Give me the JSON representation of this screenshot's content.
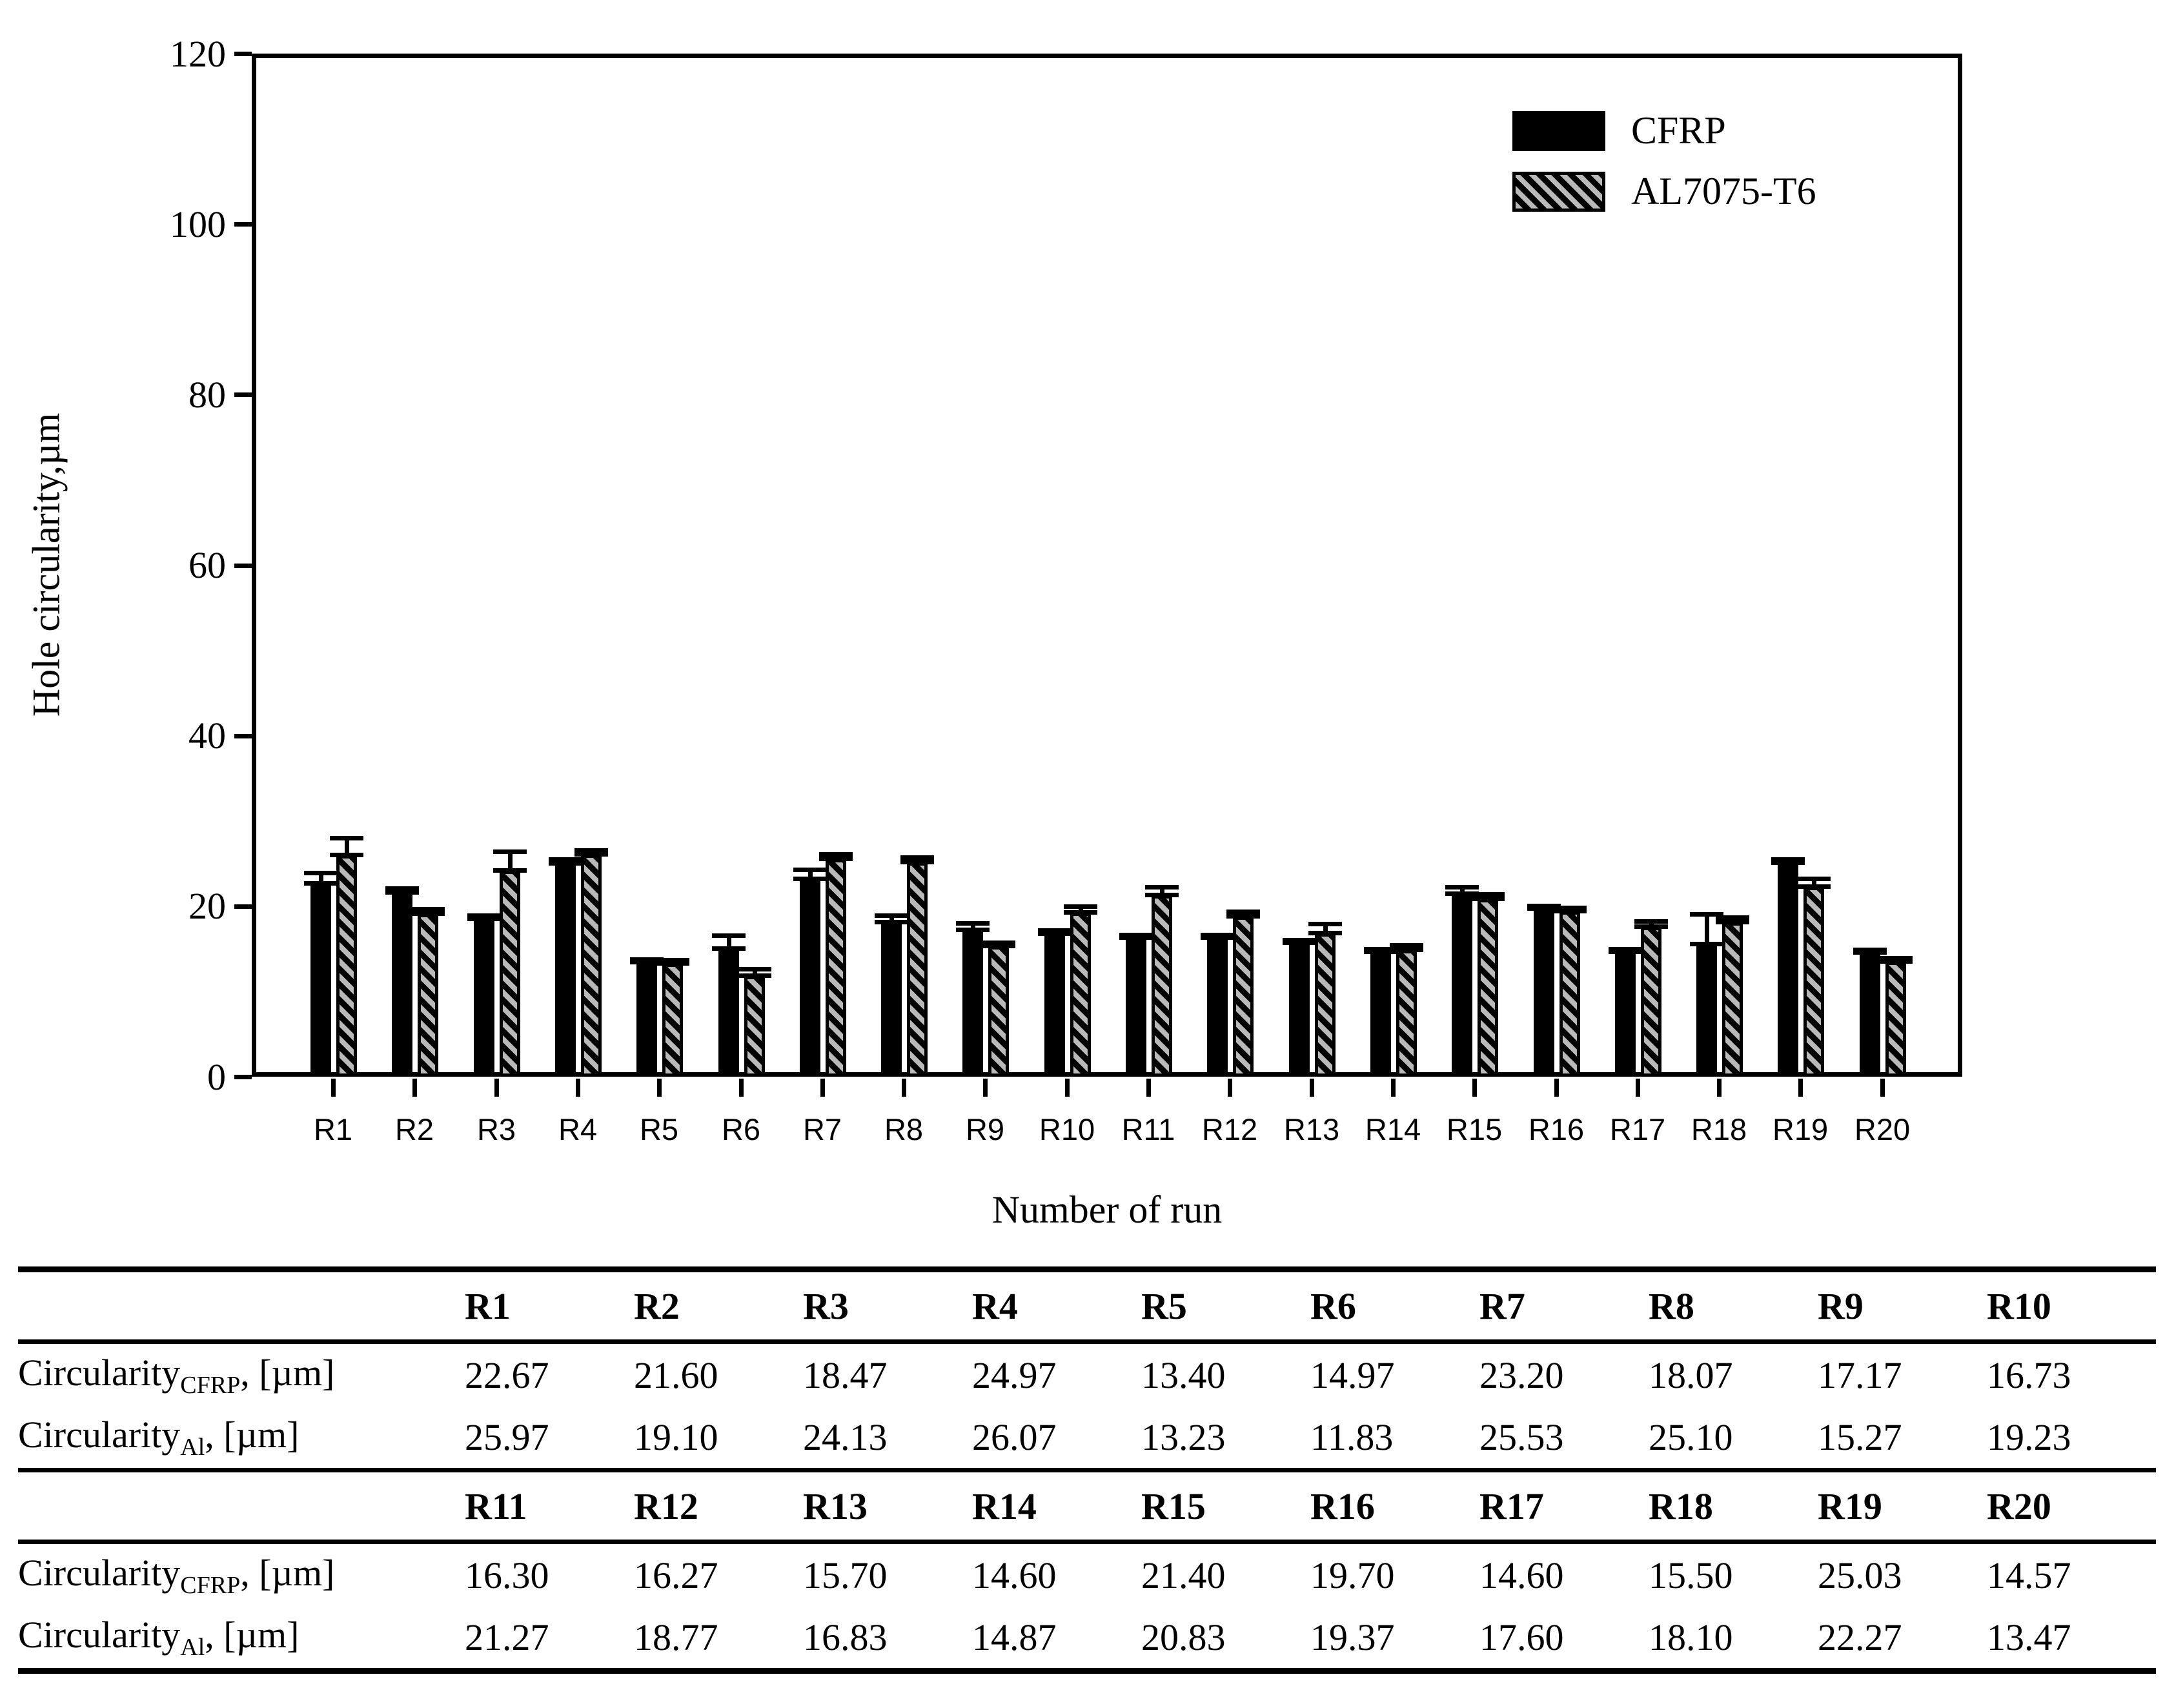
{
  "chart_data": {
    "type": "bar",
    "title": "",
    "xlabel": "Number of run",
    "ylabel": "Hole circularity,µm",
    "ylim": [
      0,
      120
    ],
    "yticks": [
      0,
      20,
      40,
      60,
      80,
      100,
      120
    ],
    "grid": false,
    "legend_position": "top-right-inside",
    "categories": [
      "R1",
      "R2",
      "R3",
      "R4",
      "R5",
      "R6",
      "R7",
      "R8",
      "R9",
      "R10",
      "R11",
      "R12",
      "R13",
      "R14",
      "R15",
      "R16",
      "R17",
      "R18",
      "R19",
      "R20"
    ],
    "series": [
      {
        "name": "CFRP",
        "style": "solid",
        "fill_color": "#000000",
        "values": [
          22.67,
          21.6,
          18.47,
          24.97,
          13.4,
          14.97,
          23.2,
          18.07,
          17.17,
          16.73,
          16.3,
          16.27,
          15.7,
          14.6,
          21.4,
          19.7,
          14.6,
          15.5,
          25.03,
          14.57
        ],
        "errors_estimated": [
          1.2,
          0.4,
          0.4,
          0.5,
          0.3,
          1.5,
          1.0,
          0.8,
          0.8,
          0.4,
          0.3,
          0.3,
          0.3,
          0.3,
          0.8,
          0.3,
          0.3,
          3.5,
          0.4,
          0.3
        ]
      },
      {
        "name": "AL7075-T6",
        "style": "diagonal-hatch",
        "fill_color": "#b9b9b9",
        "stripe_color": "#000000",
        "values": [
          25.97,
          19.1,
          24.13,
          26.07,
          13.23,
          11.83,
          25.53,
          25.1,
          15.27,
          19.23,
          21.27,
          18.77,
          16.83,
          14.87,
          20.83,
          19.37,
          17.6,
          18.1,
          22.27,
          13.47
        ],
        "errors_estimated": [
          2.0,
          0.5,
          2.2,
          0.4,
          0.4,
          0.7,
          0.5,
          0.6,
          0.4,
          0.7,
          0.9,
          0.5,
          1.0,
          0.5,
          0.5,
          0.4,
          0.6,
          0.5,
          0.9,
          0.4
        ]
      }
    ]
  },
  "table": {
    "row_label_base": "Circularity",
    "row_label_suffix": ", [µm]",
    "sections": [
      {
        "headers": [
          "R1",
          "R2",
          "R3",
          "R4",
          "R5",
          "R6",
          "R7",
          "R8",
          "R9",
          "R10"
        ],
        "rows": [
          {
            "sub": "CFRP",
            "values": [
              "22.67",
              "21.60",
              "18.47",
              "24.97",
              "13.40",
              "14.97",
              "23.20",
              "18.07",
              "17.17",
              "16.73"
            ]
          },
          {
            "sub": "Al",
            "values": [
              "25.97",
              "19.10",
              "24.13",
              "26.07",
              "13.23",
              "11.83",
              "25.53",
              "25.10",
              "15.27",
              "19.23"
            ]
          }
        ]
      },
      {
        "headers": [
          "R11",
          "R12",
          "R13",
          "R14",
          "R15",
          "R16",
          "R17",
          "R18",
          "R19",
          "R20"
        ],
        "rows": [
          {
            "sub": "CFRP",
            "values": [
              "16.30",
              "16.27",
              "15.70",
              "14.60",
              "21.40",
              "19.70",
              "14.60",
              "15.50",
              "25.03",
              "14.57"
            ]
          },
          {
            "sub": "Al",
            "values": [
              "21.27",
              "18.77",
              "16.83",
              "14.87",
              "20.83",
              "19.37",
              "17.60",
              "18.10",
              "22.27",
              "13.47"
            ]
          }
        ]
      }
    ]
  }
}
